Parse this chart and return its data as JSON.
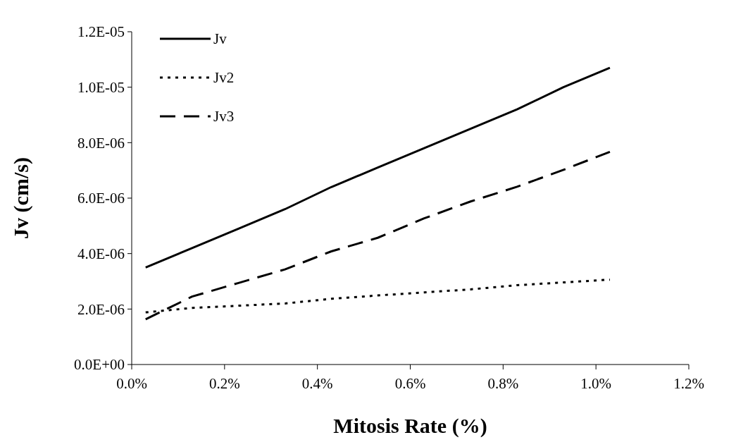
{
  "chart_data": {
    "type": "line",
    "xlabel": "Mitosis Rate (%)",
    "ylabel": "Jv (cm/s)",
    "x": [
      0.03,
      0.13,
      0.23,
      0.33,
      0.43,
      0.53,
      0.63,
      0.73,
      0.83,
      0.93,
      1.03
    ],
    "series": [
      {
        "name": "Jv",
        "color": "#000000",
        "line_style": "solid",
        "values": [
          3.5e-06,
          4.2e-06,
          4.9e-06,
          5.6e-06,
          6.4e-06,
          7.1e-06,
          7.8e-06,
          8.5e-06,
          9.2e-06,
          1e-05,
          1.07e-05
        ]
      },
      {
        "name": "Jv2",
        "color": "#000000",
        "line_style": "dotted",
        "values": [
          1.88e-06,
          2.04e-06,
          2.12e-06,
          2.2e-06,
          2.37e-06,
          2.49e-06,
          2.6e-06,
          2.71e-06,
          2.86e-06,
          2.96e-06,
          3.06e-06
        ]
      },
      {
        "name": "Jv3",
        "color": "#000000",
        "line_style": "dashed",
        "values": [
          1.63e-06,
          2.45e-06,
          2.94e-06,
          3.43e-06,
          4.08e-06,
          4.57e-06,
          5.27e-06,
          5.88e-06,
          6.41e-06,
          7.02e-06,
          7.67e-06
        ]
      }
    ],
    "xlim": [
      0,
      1.2
    ],
    "xticks": [
      {
        "value": 0,
        "label": "0.0%"
      },
      {
        "value": 0.2,
        "label": "0.2%"
      },
      {
        "value": 0.4,
        "label": "0.4%"
      },
      {
        "value": 0.6,
        "label": "0.6%"
      },
      {
        "value": 0.8,
        "label": "0.8%"
      },
      {
        "value": 1.0,
        "label": "1.0%"
      },
      {
        "value": 1.2,
        "label": "1.2%"
      }
    ],
    "ylim": [
      0,
      1.2e-05
    ],
    "yticks": [
      {
        "value": 0,
        "label": "0.0E+00"
      },
      {
        "value": 2e-06,
        "label": "2.0E-06"
      },
      {
        "value": 4e-06,
        "label": "4.0E-06"
      },
      {
        "value": 6e-06,
        "label": "6.0E-06"
      },
      {
        "value": 8e-06,
        "label": "8.0E-06"
      },
      {
        "value": 1e-05,
        "label": "1.0E-05"
      },
      {
        "value": 1.2e-05,
        "label": "1.2E-05"
      }
    ],
    "legend": "top left",
    "grid": false
  }
}
